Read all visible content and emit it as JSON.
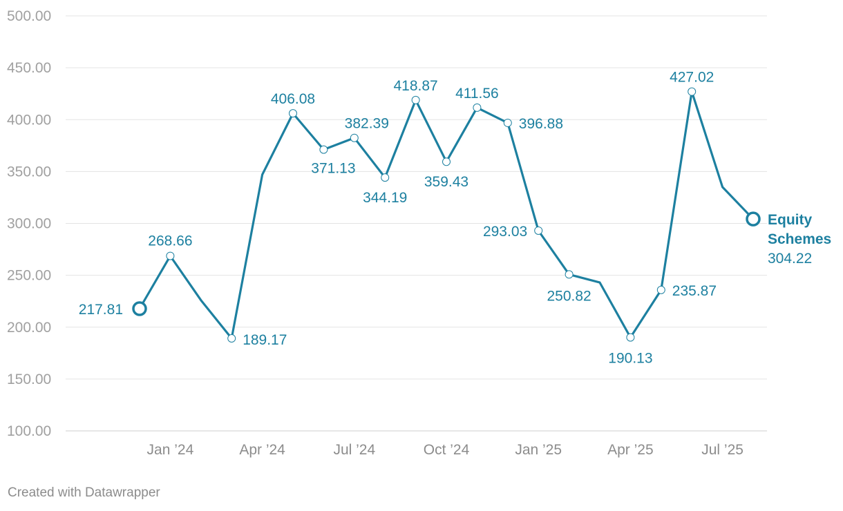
{
  "chart_data": {
    "type": "line",
    "title": "",
    "xlabel": "",
    "ylabel": "",
    "ylim": [
      100,
      500
    ],
    "yticks": [
      "500.00",
      "450.00",
      "400.00",
      "350.00",
      "300.00",
      "250.00",
      "200.00",
      "150.00",
      "100.00"
    ],
    "xticks": [
      "Jan ’24",
      "Apr ’24",
      "Jul ’24",
      "Oct ’24",
      "Jan ’25",
      "Apr ’25",
      "Jul ’25"
    ],
    "x": [
      "Dec 2023",
      "Jan 2024",
      "Feb 2024",
      "Mar 2024",
      "Apr 2024",
      "May 2024",
      "Jun 2024",
      "Jul 2024",
      "Aug 2024",
      "Sep 2024",
      "Oct 2024",
      "Nov 2024",
      "Dec 2023 ",
      "Jan 2025",
      "Feb 2025",
      "Mar 2025",
      "Apr 2025",
      "May 2025",
      "Jun 2025",
      "Jul 2025",
      "Aug 2025"
    ],
    "series": [
      {
        "name": "Equity Schemes",
        "name_lines": [
          "Equity",
          "Schemes"
        ],
        "color": "#1d80a0",
        "values": [
          217.81,
          268.66,
          226.0,
          189.17,
          347.0,
          406.08,
          371.13,
          382.39,
          344.19,
          418.87,
          359.43,
          411.56,
          396.88,
          293.03,
          250.82,
          243.0,
          190.13,
          235.87,
          427.02,
          335.0,
          304.22
        ],
        "labels": [
          "217.81",
          "268.66",
          "",
          "189.17",
          "",
          "406.08",
          "371.13",
          "382.39",
          "344.19",
          "418.87",
          "359.43",
          "411.56",
          "396.88",
          "293.03",
          "250.82",
          "",
          "190.13",
          "235.87",
          "427.02",
          "",
          "304.22"
        ]
      }
    ],
    "grid": true,
    "legend": "inline at end of line"
  },
  "credit": "Created with Datawrapper"
}
